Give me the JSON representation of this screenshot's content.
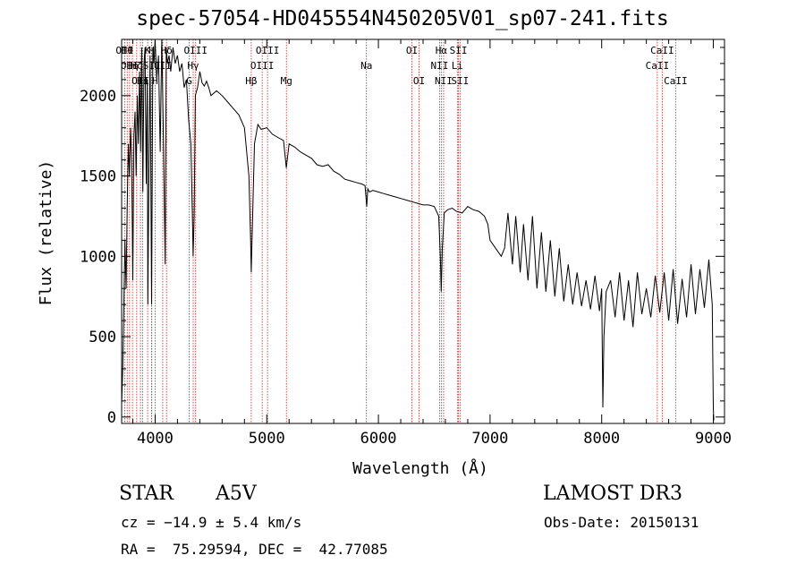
{
  "title": "spec-57054-HD045554N450205V01_sp07-241.fits",
  "info": {
    "class_label": "STAR",
    "subclass": "A5V",
    "survey": "LAMOST DR3",
    "cz": "cz = −14.9 ± 5.4 km/s",
    "obs_date": "Obs-Date: 20150131",
    "coords": "RA =  75.29594, DEC =  42.77085"
  },
  "chart_data": {
    "type": "line",
    "title": "spec-57054-HD045554N450205V01_sp07-241.fits",
    "xlabel": "Wavelength (Å)",
    "ylabel": "Flux (relative)",
    "xlim": [
      3700,
      9100
    ],
    "ylim": [
      -40,
      2350
    ],
    "xticks": [
      4000,
      5000,
      6000,
      7000,
      8000,
      9000
    ],
    "yticks": [
      0,
      500,
      1000,
      1500,
      2000
    ],
    "grid": false,
    "line_color": "#000000",
    "marker_color": "#cc2222",
    "series": [
      {
        "x": [
          3700,
          3710,
          3720,
          3730,
          3740,
          3750,
          3760,
          3770,
          3780,
          3790,
          3800,
          3810,
          3820,
          3830,
          3840,
          3850,
          3860,
          3870,
          3880,
          3890,
          3900,
          3910,
          3920,
          3930,
          3935,
          3945,
          3955,
          3968,
          3980,
          3990,
          4000,
          4015,
          4030,
          4045,
          4060,
          4075,
          4090,
          4100,
          4110,
          4125,
          4140,
          4160,
          4180,
          4200,
          4220,
          4240,
          4260,
          4280,
          4300,
          4320,
          4335,
          4340,
          4350,
          4360,
          4380,
          4400,
          4420,
          4440,
          4460,
          4480,
          4500,
          4550,
          4600,
          4650,
          4700,
          4750,
          4800,
          4840,
          4855,
          4861,
          4870,
          4890,
          4920,
          4950,
          5000,
          5050,
          5100,
          5150,
          5175,
          5200,
          5250,
          5300,
          5350,
          5400,
          5450,
          5500,
          5550,
          5600,
          5650,
          5700,
          5750,
          5800,
          5850,
          5880,
          5895,
          5905,
          5920,
          5950,
          6000,
          6050,
          6100,
          6150,
          6200,
          6250,
          6300,
          6350,
          6400,
          6450,
          6500,
          6540,
          6555,
          6563,
          6572,
          6590,
          6620,
          6660,
          6700,
          6750,
          6800,
          6850,
          6900,
          6950,
          6980,
          7000,
          7050,
          7100,
          7130,
          7160,
          7200,
          7230,
          7270,
          7300,
          7340,
          7380,
          7420,
          7460,
          7500,
          7540,
          7580,
          7620,
          7660,
          7700,
          7740,
          7780,
          7820,
          7860,
          7900,
          7940,
          7980,
          8000,
          8010,
          8020,
          8040,
          8080,
          8120,
          8160,
          8200,
          8240,
          8280,
          8320,
          8360,
          8400,
          8440,
          8480,
          8520,
          8560,
          8600,
          8640,
          8680,
          8720,
          8760,
          8800,
          8840,
          8880,
          8920,
          8960,
          8990,
          9000,
          9005
        ],
        "y": [
          80,
          300,
          700,
          1100,
          800,
          1300,
          1700,
          1500,
          1800,
          1600,
          850,
          1750,
          1900,
          1500,
          2000,
          1700,
          2150,
          1650,
          2300,
          1400,
          2200,
          2300,
          1450,
          2100,
          700,
          1600,
          2250,
          700,
          2300,
          2200,
          2350,
          2100,
          2250,
          1650,
          2350,
          1700,
          950,
          2300,
          2200,
          2250,
          2150,
          2300,
          2200,
          2250,
          2150,
          2200,
          2050,
          2100,
          1850,
          1700,
          1200,
          1000,
          1250,
          2000,
          2050,
          2150,
          2080,
          2060,
          2090,
          2050,
          2000,
          2030,
          2000,
          1960,
          1920,
          1880,
          1800,
          1500,
          1100,
          900,
          1150,
          1700,
          1820,
          1790,
          1800,
          1760,
          1740,
          1720,
          1550,
          1700,
          1680,
          1650,
          1630,
          1610,
          1570,
          1560,
          1570,
          1530,
          1510,
          1480,
          1470,
          1460,
          1450,
          1440,
          1310,
          1420,
          1400,
          1410,
          1400,
          1390,
          1380,
          1370,
          1360,
          1350,
          1340,
          1330,
          1320,
          1320,
          1310,
          1250,
          1000,
          780,
          1050,
          1270,
          1290,
          1300,
          1280,
          1270,
          1310,
          1290,
          1280,
          1250,
          1200,
          1100,
          1050,
          1000,
          1050,
          1270,
          950,
          1250,
          900,
          1200,
          850,
          1250,
          800,
          1150,
          780,
          1100,
          750,
          1050,
          720,
          950,
          700,
          900,
          690,
          850,
          670,
          880,
          660,
          800,
          60,
          500,
          780,
          850,
          620,
          900,
          600,
          850,
          560,
          900,
          640,
          800,
          620,
          880,
          650,
          900,
          600,
          920,
          580,
          860,
          620,
          950,
          640,
          920,
          680,
          980,
          700,
          50,
          -20
        ]
      }
    ],
    "line_markers": [
      {
        "x": 3727,
        "row": 0,
        "label": "OII"
      },
      {
        "x": 3750,
        "row": 0,
        "label": "Hθ"
      },
      {
        "x": 3771,
        "row": 1,
        "label": "OII"
      },
      {
        "x": 3797,
        "row": 1,
        "label": "Hη"
      },
      {
        "x": 3835,
        "row": 1,
        "label": "Hζ"
      },
      {
        "x": 3869,
        "row": 2,
        "label": "OII"
      },
      {
        "x": 3889,
        "row": 2,
        "label": "Hη"
      },
      {
        "x": 3933,
        "row": 0,
        "label": "K"
      },
      {
        "x": 3968,
        "row": 0,
        "label": "H"
      },
      {
        "x": 3970,
        "row": 1,
        "label": "SII"
      },
      {
        "x": 4000,
        "row": 2,
        "label": "H"
      },
      {
        "x": 4102,
        "row": 0,
        "label": "Hδ"
      },
      {
        "x": 4068,
        "row": 1,
        "label": "OII"
      },
      {
        "x": 4305,
        "row": 2,
        "label": "G"
      },
      {
        "x": 4341,
        "row": 1,
        "label": "Hγ"
      },
      {
        "x": 4363,
        "row": 0,
        "label": "OIII"
      },
      {
        "x": 4861,
        "row": 2,
        "label": "Hβ"
      },
      {
        "x": 4959,
        "row": 1,
        "label": "OIII"
      },
      {
        "x": 5007,
        "row": 0,
        "label": "OIII"
      },
      {
        "x": 5176,
        "row": 2,
        "label": "Mg"
      },
      {
        "x": 5893,
        "row": 1,
        "label": "Na"
      },
      {
        "x": 6300,
        "row": 0,
        "label": "OI"
      },
      {
        "x": 6364,
        "row": 2,
        "label": "OI"
      },
      {
        "x": 6548,
        "row": 1,
        "label": "NII"
      },
      {
        "x": 6563,
        "row": 0,
        "label": "Hα"
      },
      {
        "x": 6584,
        "row": 2,
        "label": "NII"
      },
      {
        "x": 6707,
        "row": 1,
        "label": "Li"
      },
      {
        "x": 6717,
        "row": 0,
        "label": "SII"
      },
      {
        "x": 6731,
        "row": 2,
        "label": "SII"
      },
      {
        "x": 8498,
        "row": 1,
        "label": "CaII"
      },
      {
        "x": 8542,
        "row": 0,
        "label": "CaII"
      },
      {
        "x": 8662,
        "row": 2,
        "label": "CaII"
      }
    ]
  }
}
